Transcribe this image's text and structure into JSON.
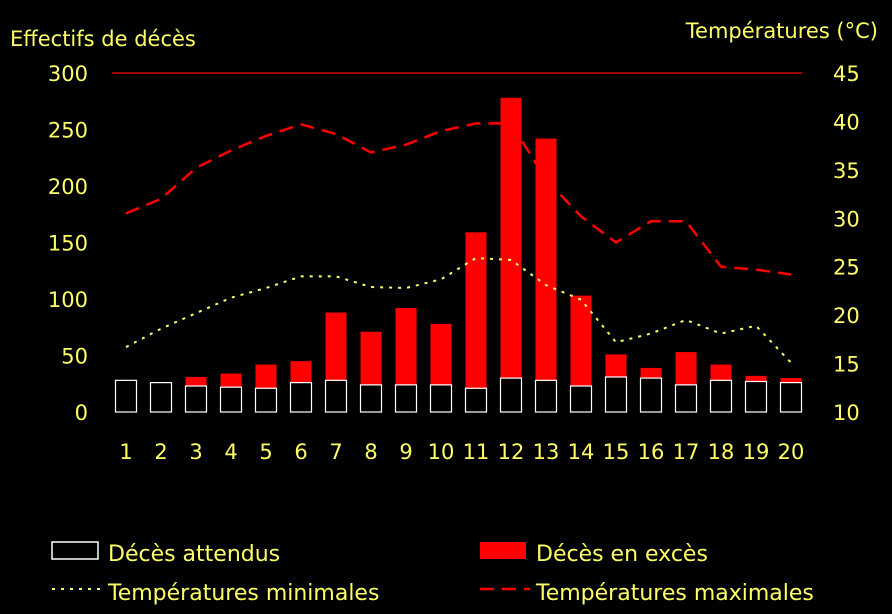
{
  "chart_data": {
    "type": "bar",
    "y_left_label": "Effectifs de décès",
    "y_right_label": "Températures (°C)",
    "x": [
      "1",
      "2",
      "3",
      "4",
      "5",
      "6",
      "7",
      "8",
      "9",
      "10",
      "11",
      "12",
      "13",
      "14",
      "15",
      "16",
      "17",
      "18",
      "19",
      "20"
    ],
    "y_left_range": [
      0,
      300
    ],
    "y_left_ticks": [
      "0",
      "50",
      "100",
      "150",
      "200",
      "250",
      "300"
    ],
    "y_right_range": [
      10,
      45
    ],
    "y_right_ticks": [
      "10",
      "15",
      "20",
      "25",
      "30",
      "35",
      "40",
      "45"
    ],
    "grid": false,
    "series": [
      {
        "name": "Décès attendus",
        "kind": "bar-stack-bottom",
        "color": "#000000",
        "edge_color": "#ffffff",
        "values": [
          28,
          26,
          23,
          22,
          21,
          26,
          28,
          24,
          24,
          24,
          21,
          30,
          28,
          23,
          31,
          30,
          24,
          28,
          27,
          26
        ]
      },
      {
        "name": "Décès en excès",
        "kind": "bar-stack-top",
        "color": "#ff0000",
        "values": [
          0,
          0,
          8,
          12,
          21,
          19,
          60,
          47,
          68,
          54,
          138,
          248,
          214,
          80,
          20,
          9,
          29,
          14,
          5,
          4
        ]
      },
      {
        "name": "Températures minimales",
        "kind": "line",
        "axis": "right",
        "color": "#ffff66",
        "style": "dotted",
        "values": [
          16.7,
          18.6,
          20.2,
          21.8,
          22.8,
          24,
          24,
          22.9,
          22.8,
          23.7,
          25.9,
          25.7,
          23.1,
          21.6,
          17.2,
          18.1,
          19.5,
          18.1,
          18.9,
          15.1
        ]
      },
      {
        "name": "Températures maximales",
        "kind": "line",
        "axis": "right",
        "color": "#ff0000",
        "style": "dashed",
        "values": [
          30.5,
          32,
          35.2,
          37,
          38.5,
          39.7,
          38.7,
          36.8,
          37.6,
          39,
          39.8,
          39.8,
          34,
          30.2,
          27.5,
          29.7,
          29.7,
          25,
          24.7,
          24.2
        ]
      }
    ],
    "reference_line": {
      "axis": "left",
      "value": 300,
      "color": "#ff0000"
    },
    "legend_position": "bottom"
  }
}
